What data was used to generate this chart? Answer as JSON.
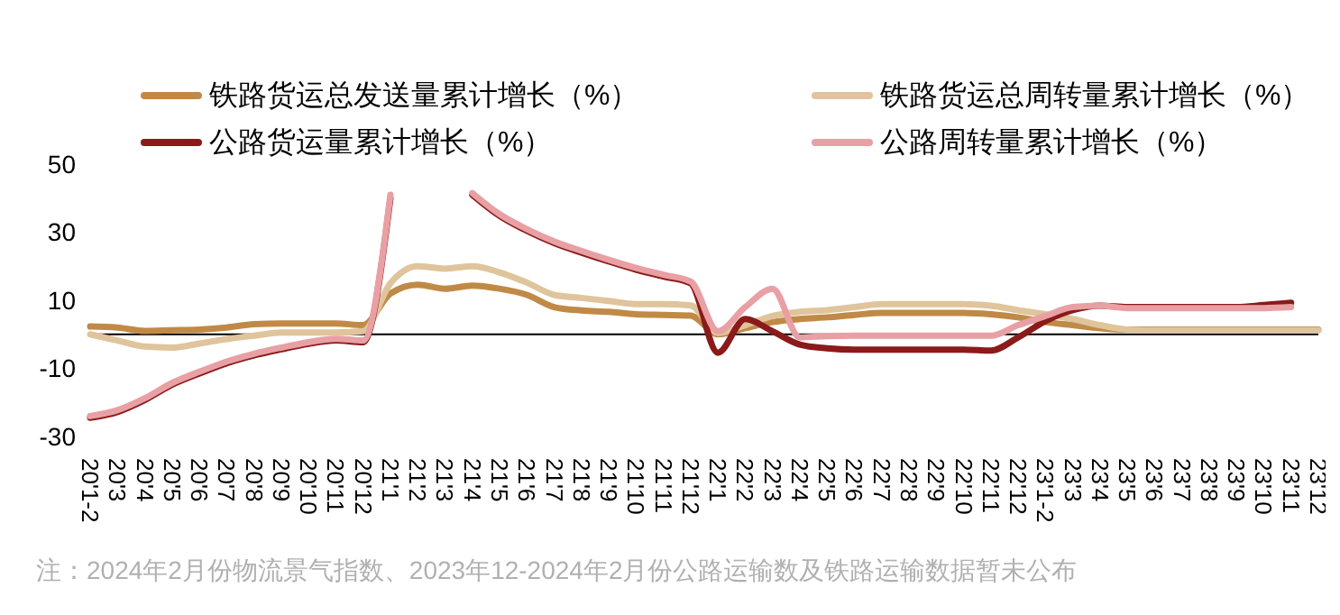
{
  "chart_data": {
    "type": "line",
    "categories": [
      "20'1-2",
      "20'3",
      "20'4",
      "20'5",
      "20'6",
      "20'7",
      "20'8",
      "20'9",
      "20'10",
      "20'11",
      "20'12",
      "21'1",
      "21'2",
      "21'3",
      "21'4",
      "21'5",
      "21'6",
      "21'7",
      "21'8",
      "21'9",
      "21'10",
      "21'11",
      "21'12",
      "22'1",
      "22'2",
      "22'3",
      "22'4",
      "22'5",
      "22'6",
      "22'7",
      "22'8",
      "22'9",
      "22'10",
      "22'11",
      "22'12",
      "23'1-2",
      "23'3",
      "23'4",
      "23'5",
      "23'6",
      "23'7",
      "23'8",
      "23'9",
      "23'10",
      "23'11",
      "23'12"
    ],
    "series": [
      {
        "name": "铁路货运总发送量累计增长（%）",
        "color": "#c08a46",
        "values": [
          2.3,
          2,
          1,
          1.2,
          1.4,
          2,
          3,
          3.2,
          3.2,
          3.2,
          2.7,
          12,
          14.6,
          13.4,
          14.3,
          13.4,
          11.6,
          8,
          7,
          6.6,
          5.9,
          5.7,
          5.5,
          0,
          1.8,
          3.6,
          4.5,
          5,
          5.7,
          6.3,
          6.3,
          6.3,
          6.3,
          5.9,
          5,
          3.6,
          2.7,
          1.8,
          1.4,
          1.4,
          1.4,
          1.4,
          1.4,
          1.4,
          1.4,
          1.4
        ]
      },
      {
        "name": "铁路货运总周转量累计增长（%）",
        "color": "#dfc49c",
        "values": [
          0,
          -1.8,
          -3.6,
          -3.9,
          -2.7,
          -1.4,
          -0.4,
          0.5,
          0.5,
          0.5,
          0.9,
          15,
          20,
          19.3,
          20,
          18.2,
          15.2,
          11.6,
          10.7,
          9.8,
          8.9,
          8.9,
          8.5,
          0.4,
          2.7,
          5.4,
          6.6,
          7.1,
          8,
          8.9,
          8.9,
          8.9,
          8.9,
          8.4,
          7.1,
          5.9,
          4.5,
          2.7,
          1.4,
          1.2,
          1.2,
          1.2,
          1.2,
          1.2,
          1.2,
          1.2
        ]
      },
      {
        "name": "公路货运量累计增长（%）",
        "color": "#8b1a1a",
        "values": [
          -24.5,
          -22.8,
          -19.3,
          -14.8,
          -11.5,
          -8.5,
          -6.2,
          -4.4,
          -2.8,
          -1.8,
          -2.3,
          40,
          null,
          null,
          41,
          34.8,
          30.4,
          26.8,
          24,
          21.4,
          19,
          17,
          15,
          -5.4,
          4.5,
          0.9,
          -3,
          -4.1,
          -4.5,
          -4.5,
          -4.5,
          -4.5,
          -4.5,
          -4.8,
          -0.9,
          3.9,
          7.1,
          8.4,
          8,
          8,
          8,
          8,
          8,
          8.6,
          9.3,
          null
        ]
      },
      {
        "name": "公路周转量累计增长（%）",
        "color": "#e8a0a4",
        "values": [
          -24,
          -22.3,
          -18.8,
          -14.3,
          -11,
          -8,
          -5.7,
          -3.9,
          -2.3,
          -1.3,
          -1.8,
          41,
          null,
          null,
          41.5,
          35.3,
          30.9,
          27.3,
          24.5,
          21.9,
          19.5,
          17.5,
          15.5,
          0.9,
          8,
          13.4,
          -0.9,
          -0.5,
          -0.4,
          -0.4,
          -0.4,
          -0.4,
          -0.4,
          -0.4,
          2.7,
          5.4,
          8,
          8.4,
          7.7,
          7.7,
          7.7,
          7.7,
          7.7,
          7.7,
          8,
          null
        ]
      }
    ],
    "ylim": [
      -30,
      50
    ],
    "yticks": [
      -30,
      -10,
      10,
      30,
      50
    ],
    "grid": false,
    "legend": "top",
    "marker": "none",
    "line_style": "solid",
    "annotations": [
      "注：2024年2月份物流景气指数、2023年12-2024年2月份公路运输数及铁路运输数据暂未公布"
    ]
  }
}
